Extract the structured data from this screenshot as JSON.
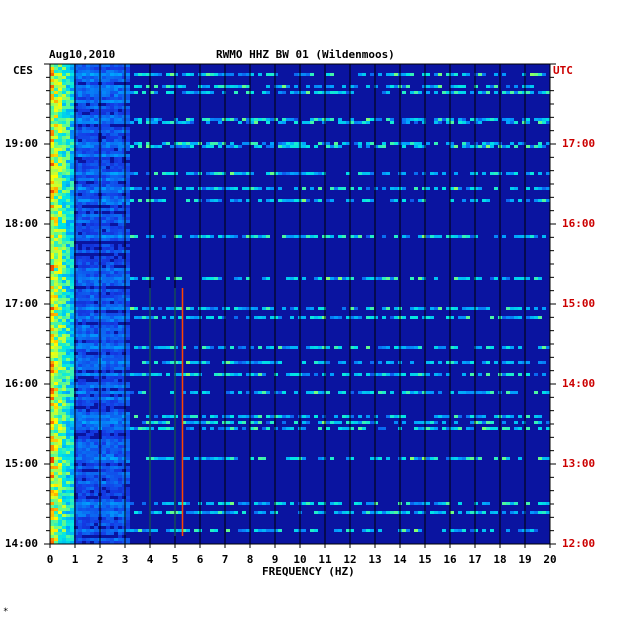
{
  "header": {
    "date": "Aug10,2010",
    "station": "RWMO HHZ BW 01 (Wildenmoos)",
    "left_zone": "CES",
    "right_zone": "UTC"
  },
  "footer_mark": "*",
  "colors": {
    "background_low": "#0a14a0",
    "gridline": "#000000",
    "utc_text": "#cc0000"
  },
  "chart_data": {
    "type": "heatmap",
    "title": "RWMO HHZ BW 01 (Wildenmoos)",
    "xlabel": "FREQUENCY (HZ)",
    "ylabel": "",
    "x_range": [
      0,
      20
    ],
    "x_ticks": [
      "0",
      "1",
      "2",
      "3",
      "4",
      "5",
      "6",
      "7",
      "8",
      "9",
      "10",
      "11",
      "12",
      "13",
      "14",
      "15",
      "16",
      "17",
      "18",
      "19",
      "20"
    ],
    "y_ticks_left": [
      "19:00",
      "18:00",
      "17:00",
      "16:00",
      "15:00",
      "14:00"
    ],
    "y_ticks_right": [
      "17:00",
      "16:00",
      "15:00",
      "14:00",
      "13:00",
      "12:00"
    ],
    "y_range_local_hours": [
      14.0,
      20.0
    ],
    "grid": true,
    "description_features": {
      "low_freq_energy_band_hz": [
        0,
        1
      ],
      "tremor_lines_hz": [
        4.0,
        5.0,
        5.3
      ]
    }
  }
}
